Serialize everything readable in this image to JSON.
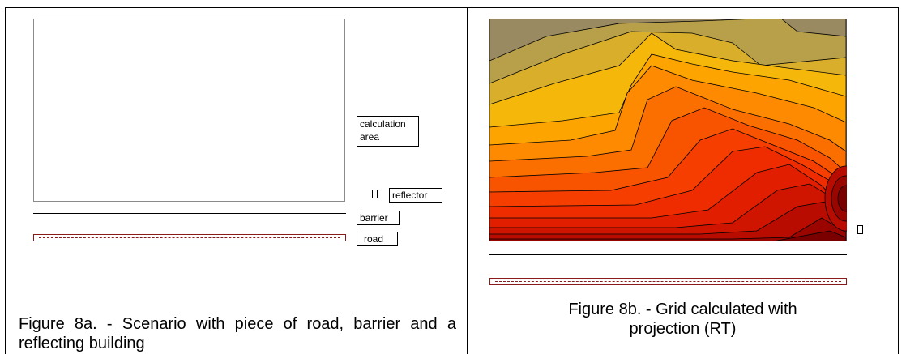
{
  "panel_a": {
    "labels": {
      "calculation_area": "calculation area",
      "reflector": "reflector",
      "barrier": "barrier",
      "road": "road"
    },
    "caption": "Figure 8a. - Scenario with piece of road, barrier and a reflecting building"
  },
  "panel_b": {
    "caption_line1": "Figure 8b. - Grid calculated with",
    "caption_line2": "projection (RT)"
  },
  "colors": {
    "road_outline": "#8b1a1a",
    "contour_palette": [
      "#9a8a62",
      "#b8a04a",
      "#d8ae2a",
      "#f5b80a",
      "#fda400",
      "#fd8a00",
      "#fb6e00",
      "#f85400",
      "#f53e00",
      "#ee2c00",
      "#e21e00",
      "#cf1400",
      "#b80c00",
      "#9a0500",
      "#7a0000"
    ]
  }
}
